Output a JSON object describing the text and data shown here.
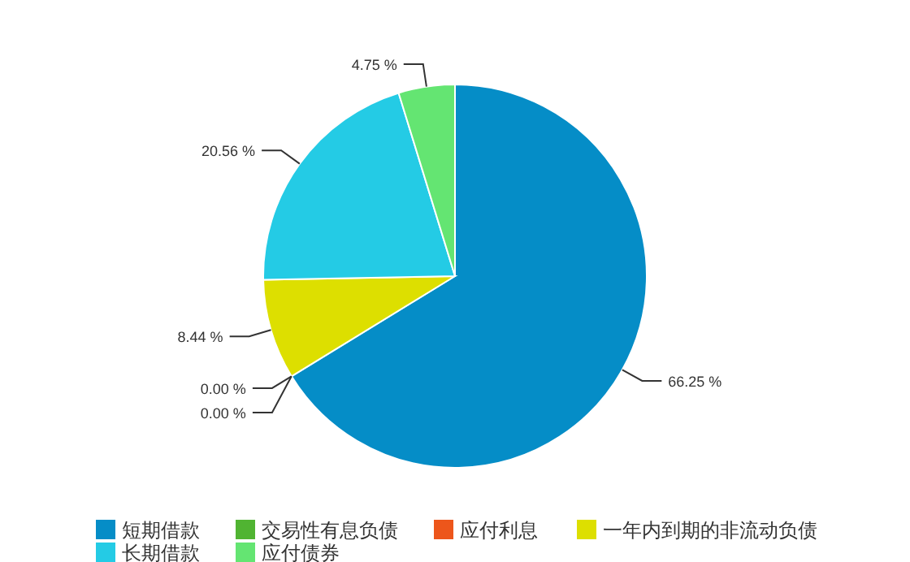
{
  "chart_data": {
    "type": "pie",
    "categories": [
      "短期借款",
      "交易性有息负债",
      "应付利息",
      "一年内到期的非流动负债",
      "长期借款",
      "应付债券"
    ],
    "values": [
      66.25,
      0.0,
      0.0,
      8.44,
      20.56,
      4.75
    ],
    "colors": [
      "#058dc7",
      "#50b432",
      "#ed561b",
      "#dddf00",
      "#24cbe5",
      "#64e572"
    ],
    "value_labels": [
      "66.25 %",
      "0.00 %",
      "0.00 %",
      "8.44 %",
      "20.56 %",
      "4.75 %"
    ],
    "legend": "bottom"
  }
}
